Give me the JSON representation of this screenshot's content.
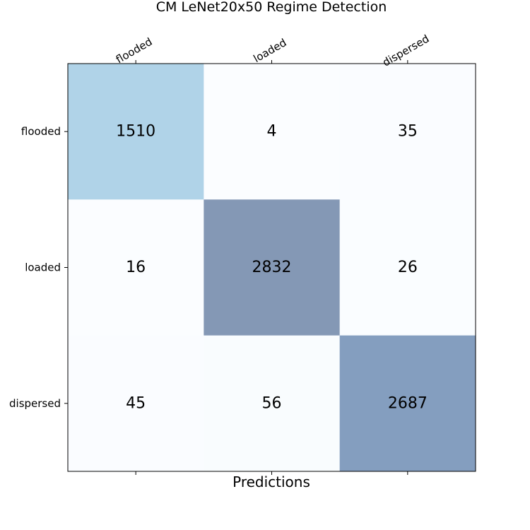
{
  "chart_data": {
    "type": "heatmap",
    "title": "CM LeNet20x50 Regime Detection",
    "xlabel": "Predictions",
    "ylabel": "",
    "x_categories": [
      "flooded",
      "loaded",
      "dispersed"
    ],
    "y_categories": [
      "flooded",
      "loaded",
      "dispersed"
    ],
    "values": [
      [
        1510,
        4,
        35
      ],
      [
        16,
        2832,
        26
      ],
      [
        45,
        56,
        2687
      ]
    ],
    "colormap": "Blues",
    "x_tick_position": "top",
    "grid": false,
    "colors": {
      "low": "#f7fbff",
      "high": "#08306b",
      "cell_alpha": 0.5
    }
  }
}
